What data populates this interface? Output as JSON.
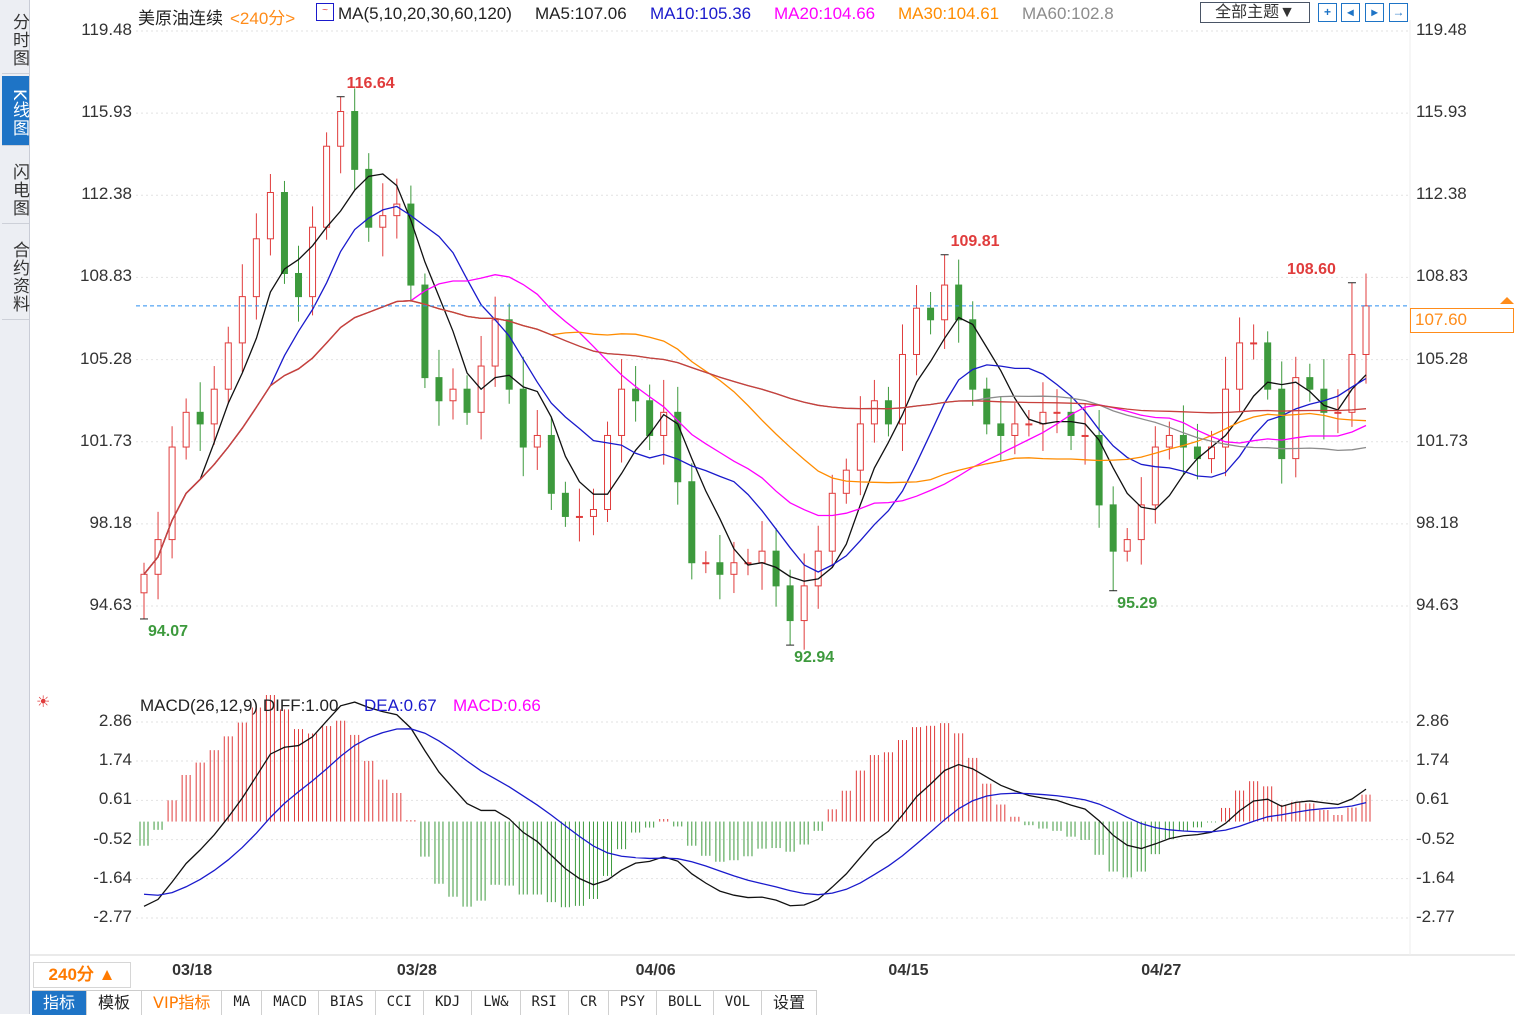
{
  "sidebar": {
    "items": [
      {
        "label": "分时图",
        "active": false
      },
      {
        "label": "K线图",
        "active": true
      },
      {
        "label": "闪电图",
        "active": false
      },
      {
        "label": "合约资料",
        "active": false
      }
    ]
  },
  "header": {
    "instrument": "美原油连续",
    "period": "<240分>",
    "ma_params": "MA(5,10,20,30,60,120)",
    "ma5": "MA5:107.06",
    "ma10": "MA10:105.36",
    "ma20": "MA20:104.66",
    "ma30": "MA30:104.61",
    "ma60": "MA60:102.8",
    "theme_select": "全部主题▼"
  },
  "toolbar": {
    "icons": [
      "crosshair-icon",
      "zoom-in-icon",
      "zoom-out-icon",
      "move-right-icon"
    ]
  },
  "colors": {
    "up": "#e03c3c",
    "down": "#3d9a3d",
    "ma5": "#111111",
    "ma10": "#1a1acc",
    "ma20": "#ff00ff",
    "ma30": "#ff8c00",
    "ma60": "#8c8c8c",
    "ma120": "#c8403c",
    "last": "#2b8ff0",
    "accent": "#1e74c6",
    "orange": "#ff7a00"
  },
  "last_price": "107.60",
  "macd_header": {
    "params": "MACD(26,12,9) DIFF:1.00",
    "dea": "DEA:0.67",
    "macd": "MACD:0.66"
  },
  "period_button": "240分 ▲",
  "tabs": [
    "指标",
    "模板",
    "VIP指标",
    "MA",
    "MACD",
    "BIAS",
    "CCI",
    "KDJ",
    "LW&",
    "RSI",
    "CR",
    "PSY",
    "BOLL",
    "VOL",
    "设置"
  ],
  "chart_data": {
    "type": "candlestick",
    "title": "美原油连续 240分",
    "price_ticks": [
      "119.48",
      "115.93",
      "112.38",
      "108.83",
      "105.28",
      "101.73",
      "98.18",
      "94.63"
    ],
    "ylim": [
      94.63,
      119.48
    ],
    "macd_ticks": [
      "2.86",
      "1.74",
      "0.61",
      "-0.52",
      "-1.64",
      "-2.77"
    ],
    "macd_ylim": [
      -2.77,
      2.86
    ],
    "x_ticks": [
      {
        "label": "03/18",
        "index": 2
      },
      {
        "label": "03/28",
        "index": 18
      },
      {
        "label": "04/06",
        "index": 35
      },
      {
        "label": "04/15",
        "index": 53
      },
      {
        "label": "04/27",
        "index": 71
      }
    ],
    "closes": [
      96,
      97.5,
      101.5,
      103,
      102.5,
      104,
      106,
      108,
      110.5,
      112.5,
      109,
      108,
      111,
      114.5,
      116,
      113.5,
      111,
      111.5,
      112,
      108.5,
      104.5,
      103.5,
      104,
      103,
      105,
      107,
      104,
      101.5,
      102,
      99.5,
      98.5,
      98.5,
      98.8,
      102,
      104,
      103.5,
      102,
      103,
      100,
      96.5,
      96.5,
      96,
      96.5,
      96.5,
      97,
      95.5,
      94,
      95.5,
      97,
      99.5,
      100.5,
      102.5,
      103.5,
      102.5,
      105.5,
      107.5,
      107,
      108.5,
      107,
      104,
      102.5,
      102,
      102.5,
      102.5,
      103,
      103,
      102,
      102,
      99,
      97,
      97.5,
      99,
      101.5,
      102,
      101.5,
      101,
      101.5,
      104,
      106,
      106,
      104,
      101,
      104.5,
      104,
      103,
      103,
      105.5,
      107.6
    ],
    "first_open": 95.2,
    "moving_averages": [
      5,
      10,
      20,
      30,
      60,
      120
    ],
    "extremes": [
      {
        "label": "116.64",
        "value": 116.64,
        "index": 14,
        "type": "high"
      },
      {
        "label": "94.07",
        "value": 94.07,
        "index": 0,
        "type": "low"
      },
      {
        "label": "92.94",
        "value": 92.94,
        "index": 46,
        "type": "low"
      },
      {
        "label": "109.81",
        "value": 109.81,
        "index": 57,
        "type": "high"
      },
      {
        "label": "95.29",
        "value": 95.29,
        "index": 69,
        "type": "low"
      },
      {
        "label": "108.60",
        "value": 108.6,
        "index": 86,
        "type": "high"
      }
    ],
    "last_price": 107.6
  }
}
